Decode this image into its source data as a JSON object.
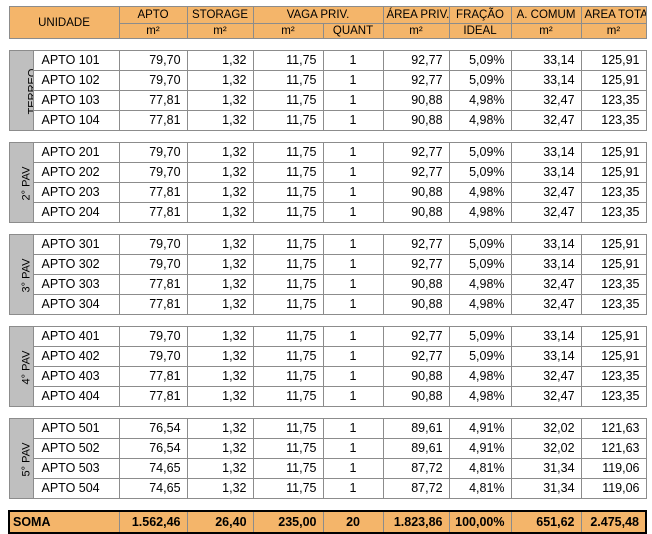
{
  "header": {
    "unidade": "UNIDADE",
    "apto": "APTO",
    "storage": "STORAGE",
    "vaga": "VAGA PRIV.",
    "area_priv": "ÁREA PRIV.",
    "fracao_top": "FRAÇÃO",
    "fracao_bottom": "IDEAL",
    "comum": "A. COMUM",
    "total": "AREA TOTAL",
    "m2": "m²",
    "quant": "QUANT"
  },
  "groups": [
    {
      "label": "TERREO",
      "rows": [
        {
          "unit": "APTO 101",
          "apto": "79,70",
          "storage": "1,32",
          "vaga_m2": "11,75",
          "quant": "1",
          "area_priv": "92,77",
          "fracao": "5,09%",
          "comum": "33,14",
          "total": "125,91"
        },
        {
          "unit": "APTO 102",
          "apto": "79,70",
          "storage": "1,32",
          "vaga_m2": "11,75",
          "quant": "1",
          "area_priv": "92,77",
          "fracao": "5,09%",
          "comum": "33,14",
          "total": "125,91"
        },
        {
          "unit": "APTO 103",
          "apto": "77,81",
          "storage": "1,32",
          "vaga_m2": "11,75",
          "quant": "1",
          "area_priv": "90,88",
          "fracao": "4,98%",
          "comum": "32,47",
          "total": "123,35"
        },
        {
          "unit": "APTO 104",
          "apto": "77,81",
          "storage": "1,32",
          "vaga_m2": "11,75",
          "quant": "1",
          "area_priv": "90,88",
          "fracao": "4,98%",
          "comum": "32,47",
          "total": "123,35"
        }
      ]
    },
    {
      "label": "2° PAV",
      "rows": [
        {
          "unit": "APTO 201",
          "apto": "79,70",
          "storage": "1,32",
          "vaga_m2": "11,75",
          "quant": "1",
          "area_priv": "92,77",
          "fracao": "5,09%",
          "comum": "33,14",
          "total": "125,91"
        },
        {
          "unit": "APTO 202",
          "apto": "79,70",
          "storage": "1,32",
          "vaga_m2": "11,75",
          "quant": "1",
          "area_priv": "92,77",
          "fracao": "5,09%",
          "comum": "33,14",
          "total": "125,91"
        },
        {
          "unit": "APTO 203",
          "apto": "77,81",
          "storage": "1,32",
          "vaga_m2": "11,75",
          "quant": "1",
          "area_priv": "90,88",
          "fracao": "4,98%",
          "comum": "32,47",
          "total": "123,35"
        },
        {
          "unit": "APTO 204",
          "apto": "77,81",
          "storage": "1,32",
          "vaga_m2": "11,75",
          "quant": "1",
          "area_priv": "90,88",
          "fracao": "4,98%",
          "comum": "32,47",
          "total": "123,35"
        }
      ]
    },
    {
      "label": "3° PAV",
      "rows": [
        {
          "unit": "APTO 301",
          "apto": "79,70",
          "storage": "1,32",
          "vaga_m2": "11,75",
          "quant": "1",
          "area_priv": "92,77",
          "fracao": "5,09%",
          "comum": "33,14",
          "total": "125,91"
        },
        {
          "unit": "APTO 302",
          "apto": "79,70",
          "storage": "1,32",
          "vaga_m2": "11,75",
          "quant": "1",
          "area_priv": "92,77",
          "fracao": "5,09%",
          "comum": "33,14",
          "total": "125,91"
        },
        {
          "unit": "APTO 303",
          "apto": "77,81",
          "storage": "1,32",
          "vaga_m2": "11,75",
          "quant": "1",
          "area_priv": "90,88",
          "fracao": "4,98%",
          "comum": "32,47",
          "total": "123,35"
        },
        {
          "unit": "APTO 304",
          "apto": "77,81",
          "storage": "1,32",
          "vaga_m2": "11,75",
          "quant": "1",
          "area_priv": "90,88",
          "fracao": "4,98%",
          "comum": "32,47",
          "total": "123,35"
        }
      ]
    },
    {
      "label": "4° PAV",
      "rows": [
        {
          "unit": "APTO 401",
          "apto": "79,70",
          "storage": "1,32",
          "vaga_m2": "11,75",
          "quant": "1",
          "area_priv": "92,77",
          "fracao": "5,09%",
          "comum": "33,14",
          "total": "125,91"
        },
        {
          "unit": "APTO 402",
          "apto": "79,70",
          "storage": "1,32",
          "vaga_m2": "11,75",
          "quant": "1",
          "area_priv": "92,77",
          "fracao": "5,09%",
          "comum": "33,14",
          "total": "125,91"
        },
        {
          "unit": "APTO 403",
          "apto": "77,81",
          "storage": "1,32",
          "vaga_m2": "11,75",
          "quant": "1",
          "area_priv": "90,88",
          "fracao": "4,98%",
          "comum": "32,47",
          "total": "123,35"
        },
        {
          "unit": "APTO 404",
          "apto": "77,81",
          "storage": "1,32",
          "vaga_m2": "11,75",
          "quant": "1",
          "area_priv": "90,88",
          "fracao": "4,98%",
          "comum": "32,47",
          "total": "123,35"
        }
      ]
    },
    {
      "label": "5° PAV",
      "rows": [
        {
          "unit": "APTO 501",
          "apto": "76,54",
          "storage": "1,32",
          "vaga_m2": "11,75",
          "quant": "1",
          "area_priv": "89,61",
          "fracao": "4,91%",
          "comum": "32,02",
          "total": "121,63"
        },
        {
          "unit": "APTO 502",
          "apto": "76,54",
          "storage": "1,32",
          "vaga_m2": "11,75",
          "quant": "1",
          "area_priv": "89,61",
          "fracao": "4,91%",
          "comum": "32,02",
          "total": "121,63"
        },
        {
          "unit": "APTO 503",
          "apto": "74,65",
          "storage": "1,32",
          "vaga_m2": "11,75",
          "quant": "1",
          "area_priv": "87,72",
          "fracao": "4,81%",
          "comum": "31,34",
          "total": "119,06"
        },
        {
          "unit": "APTO 504",
          "apto": "74,65",
          "storage": "1,32",
          "vaga_m2": "11,75",
          "quant": "1",
          "area_priv": "87,72",
          "fracao": "4,81%",
          "comum": "31,34",
          "total": "119,06"
        }
      ]
    }
  ],
  "totals": {
    "label": "SOMA",
    "apto": "1.562,46",
    "storage": "26,40",
    "vaga_m2": "235,00",
    "quant": "20",
    "area_priv": "1.823,86",
    "fracao": "100,00%",
    "comum": "651,62",
    "total": "2.475,48"
  },
  "colors": {
    "header_bg": "#f4b56a",
    "floor_label_bg": "#bfbfbf"
  }
}
